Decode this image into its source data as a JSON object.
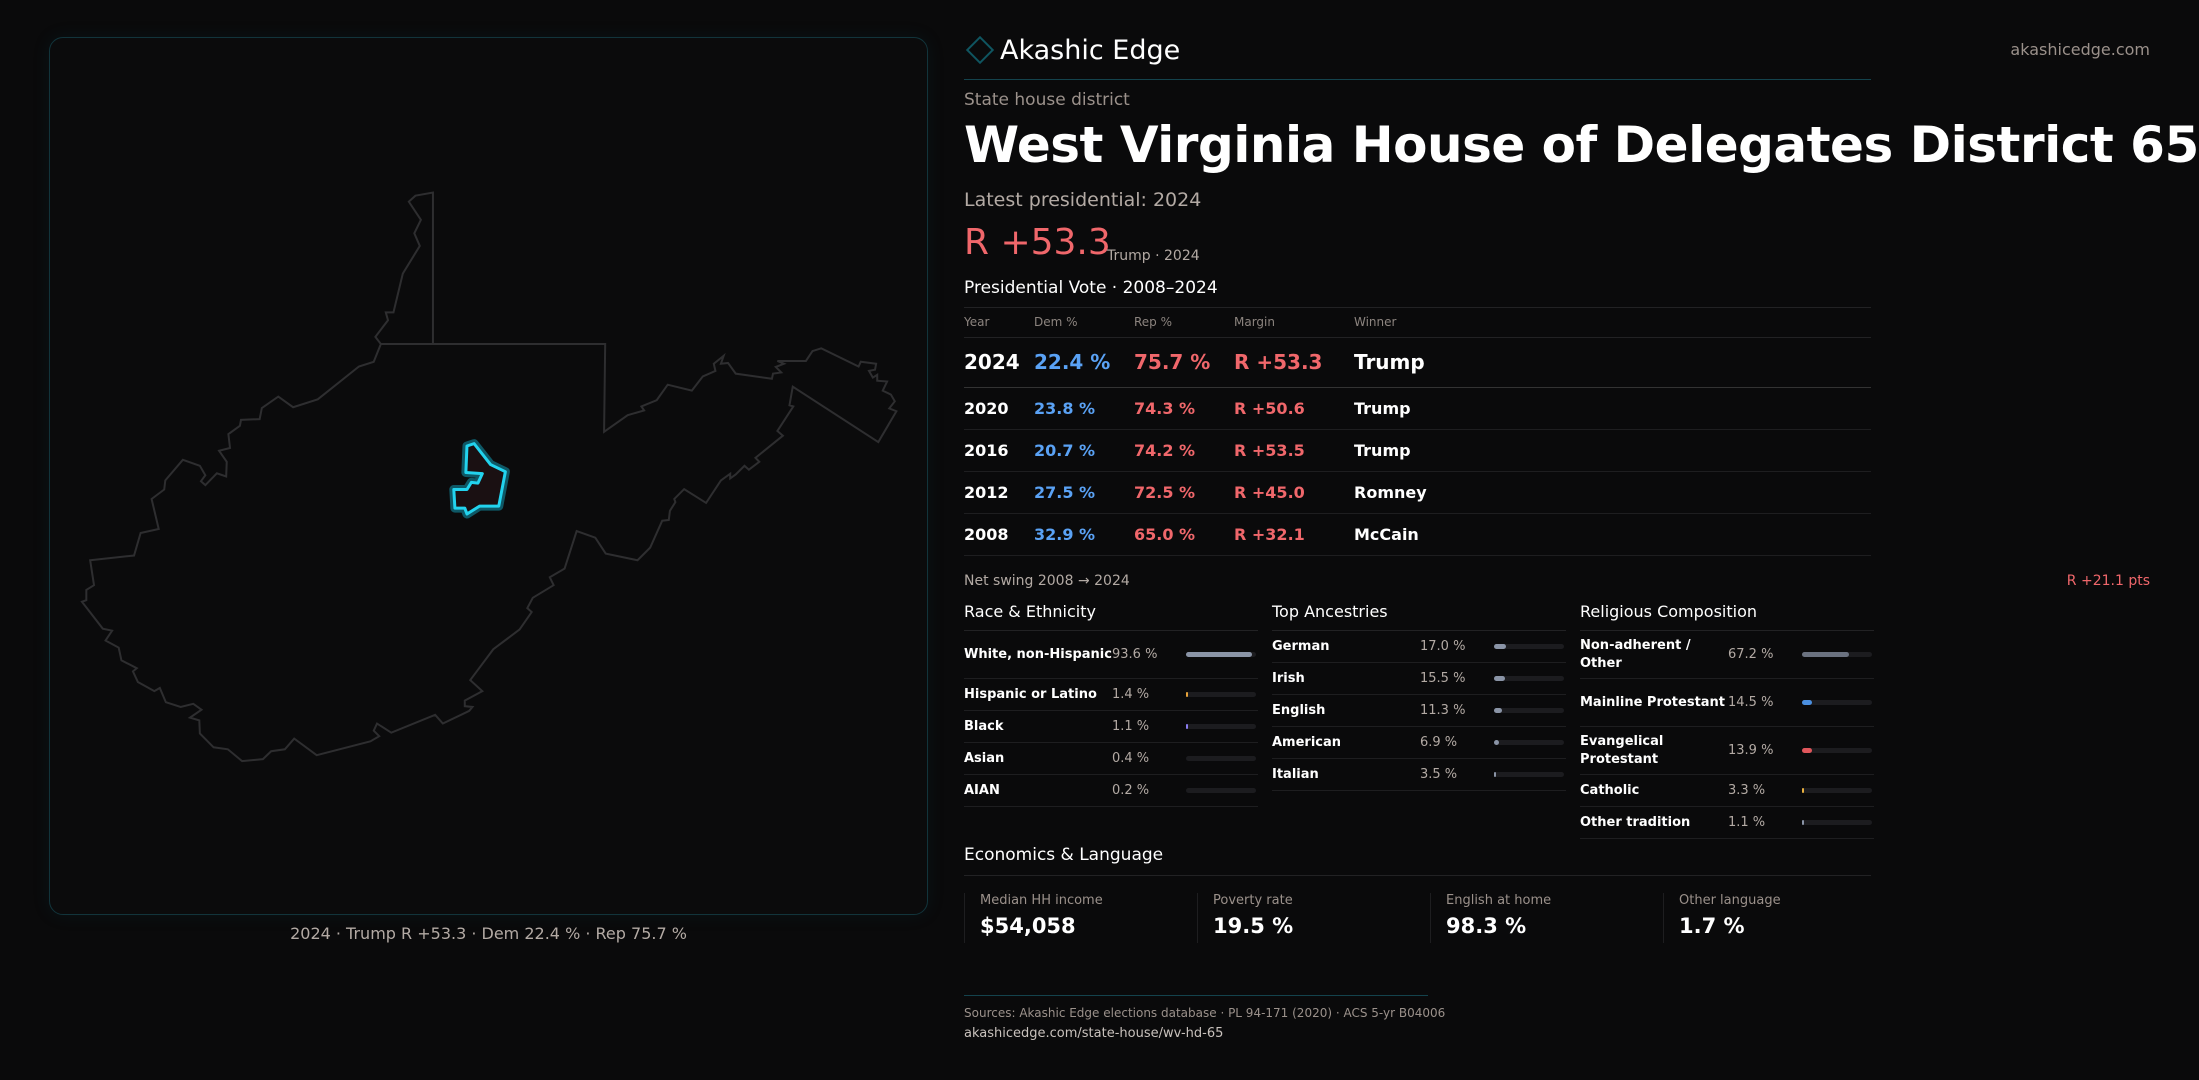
{
  "brand": {
    "name": "Akashic Edge",
    "site": "akashicedge.com"
  },
  "header": {
    "kicker": "State house district",
    "title": "West Virginia House of Delegates District 65",
    "latest": "Latest presidential: 2024",
    "margin": "R +53.3",
    "margin_sub": "Trump · 2024"
  },
  "map": {
    "caption": "2024 · Trump R +53.3 · Dem 22.4 % · Rep 75.7 %",
    "district_color": "#22d3ee"
  },
  "presidential": {
    "heading": "Presidential Vote · 2008–2024",
    "columns": [
      "Year",
      "Dem %",
      "Rep %",
      "Margin",
      "Winner"
    ],
    "rows": [
      {
        "year": "2024",
        "dem": "22.4 %",
        "rep": "75.7 %",
        "margin": "R +53.3",
        "winner": "Trump"
      },
      {
        "year": "2020",
        "dem": "23.8 %",
        "rep": "74.3 %",
        "margin": "R +50.6",
        "winner": "Trump"
      },
      {
        "year": "2016",
        "dem": "20.7 %",
        "rep": "74.2 %",
        "margin": "R +53.5",
        "winner": "Trump"
      },
      {
        "year": "2012",
        "dem": "27.5 %",
        "rep": "72.5 %",
        "margin": "R +45.0",
        "winner": "Romney"
      },
      {
        "year": "2008",
        "dem": "32.9 %",
        "rep": "65.0 %",
        "margin": "R +32.1",
        "winner": "McCain"
      }
    ],
    "swing_label": "Net swing 2008 → 2024",
    "swing_value": "R +21.1 pts"
  },
  "race": {
    "heading": "Race & Ethnicity",
    "items": [
      {
        "label": "White, non-Hispanic",
        "pct": "93.6 %",
        "value": 93.6,
        "color": "#8a94a6"
      },
      {
        "label": "Hispanic or Latino",
        "pct": "1.4 %",
        "value": 1.4,
        "color": "#e8a33a"
      },
      {
        "label": "Black",
        "pct": "1.1 %",
        "value": 1.1,
        "color": "#8a7cf0"
      },
      {
        "label": "Asian",
        "pct": "0.4 %",
        "value": 0.4,
        "color": "#1c1c1f"
      },
      {
        "label": "AIAN",
        "pct": "0.2 %",
        "value": 0.2,
        "color": "#1c1c1f"
      }
    ]
  },
  "ancestry": {
    "heading": "Top Ancestries",
    "items": [
      {
        "label": "German",
        "pct": "17.0 %",
        "value": 17.0,
        "color": "#8a94a6"
      },
      {
        "label": "Irish",
        "pct": "15.5 %",
        "value": 15.5,
        "color": "#8a94a6"
      },
      {
        "label": "English",
        "pct": "11.3 %",
        "value": 11.3,
        "color": "#8a94a6"
      },
      {
        "label": "American",
        "pct": "6.9 %",
        "value": 6.9,
        "color": "#8a94a6"
      },
      {
        "label": "Italian",
        "pct": "3.5 %",
        "value": 3.5,
        "color": "#8a94a6"
      }
    ]
  },
  "religion": {
    "heading": "Religious Composition",
    "items": [
      {
        "label": "Non-adherent / Other",
        "pct": "67.2 %",
        "value": 67.2,
        "color": "#6b7280"
      },
      {
        "label": "Mainline Protestant",
        "pct": "14.5 %",
        "value": 14.5,
        "color": "#4a8fe0"
      },
      {
        "label": "Evangelical Protestant",
        "pct": "13.9 %",
        "value": 13.9,
        "color": "#e0565b"
      },
      {
        "label": "Catholic",
        "pct": "3.3 %",
        "value": 3.3,
        "color": "#e8b040"
      },
      {
        "label": "Other tradition",
        "pct": "1.1 %",
        "value": 1.1,
        "color": "#8a94a6"
      }
    ]
  },
  "economics": {
    "heading": "Economics & Language",
    "cards": [
      {
        "label": "Median HH income",
        "value": "$54,058"
      },
      {
        "label": "Poverty rate",
        "value": "19.5 %"
      },
      {
        "label": "English at home",
        "value": "98.3 %"
      },
      {
        "label": "Other language",
        "value": "1.7 %"
      }
    ]
  },
  "footer": {
    "sources": "Sources: Akashic Edge elections database · PL 94-171 (2020) · ACS 5-yr B04006",
    "url": "akashicedge.com/state-house/wv-hd-65"
  }
}
